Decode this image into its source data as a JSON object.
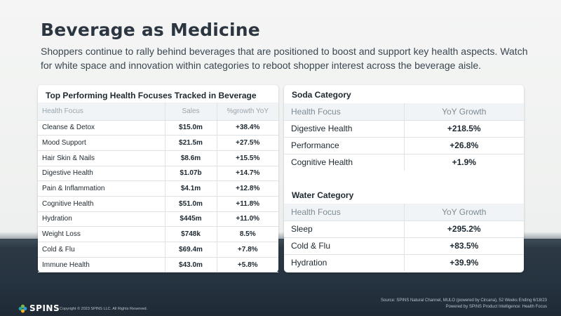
{
  "title": "Beverage as Medicine",
  "subtitle": "Shoppers continue to rally behind beverages that are positioned to boost and support key health aspects. Watch for white space and innovation within categories to reboot shopper interest across the beverage aisle.",
  "left_panel": {
    "title": "Top Performing Health Focuses Tracked in Beverage",
    "headers": [
      "Health Focus",
      "Sales",
      "%growth YoY"
    ],
    "rows": [
      [
        "Cleanse & Detox",
        "$15.0m",
        "+38.4%"
      ],
      [
        "Mood Support",
        "$21.5m",
        "+27.5%"
      ],
      [
        "Hair Skin & Nails",
        "$8.6m",
        "+15.5%"
      ],
      [
        "Digestive Health",
        "$1.07b",
        "+14.7%"
      ],
      [
        "Pain & Inflammation",
        "$4.1m",
        "+12.8%"
      ],
      [
        "Cognitive Health",
        "$51.0m",
        "+11.8%"
      ],
      [
        "Hydration",
        "$445m",
        "+11.0%"
      ],
      [
        "Weight Loss",
        "$748k",
        "8.5%"
      ],
      [
        "Cold & Flu",
        "$69.4m",
        "+7.8%"
      ],
      [
        "Immune Health",
        "$43.0m",
        "+5.8%"
      ]
    ]
  },
  "soda": {
    "title": "Soda Category",
    "headers": [
      "Health Focus",
      "YoY Growth"
    ],
    "rows": [
      [
        "Digestive Health",
        "+218.5%"
      ],
      [
        "Performance",
        "+26.8%"
      ],
      [
        "Cognitive Health",
        "+1.9%"
      ]
    ]
  },
  "water": {
    "title": "Water Category",
    "headers": [
      "Health Focus",
      "YoY Growth"
    ],
    "rows": [
      [
        "Sleep",
        "+295.2%"
      ],
      [
        "Cold & Flu",
        "+83.5%"
      ],
      [
        "Hydration",
        "+39.9%"
      ]
    ]
  },
  "footer": {
    "logo": "SPINS",
    "logo_icon": "spins-flower-icon",
    "copyright": "Copyright © 2023 SPINS LLC. All Rights Reserved.",
    "source_line1": "Source: SPINS Natural Channel, MULO (powered by Circana), 52 Weeks Ending 6/18/23",
    "source_line2": "Powered by SPINS Product Intelligence: Health Focus"
  },
  "colors": {
    "logo_green": "#7ab648",
    "logo_blue": "#2f9bd6",
    "logo_yellow": "#f2b51e",
    "logo_teal": "#24a39a"
  }
}
